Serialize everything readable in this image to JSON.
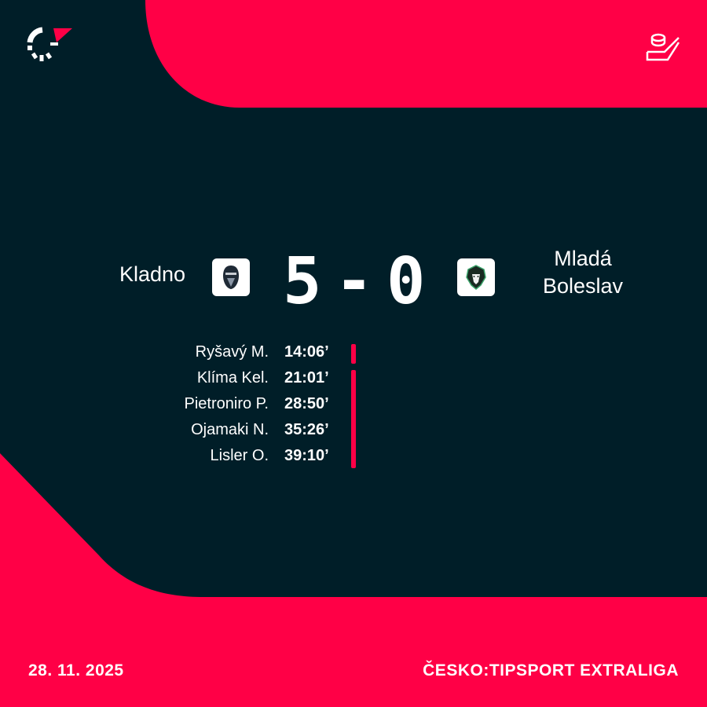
{
  "colors": {
    "background": "#001e28",
    "accent": "#ff0046",
    "text": "#ffffff"
  },
  "header": {
    "brand_icon": "flashscore-logo-icon",
    "sport_icon": "hockey-puck-stick-icon"
  },
  "match": {
    "home_team": {
      "name": "Kladno",
      "logo": "kladno-knight-logo"
    },
    "away_team": {
      "name_line1": "Mladá",
      "name_line2": "Boleslav",
      "logo": "mlada-boleslav-lion-logo"
    },
    "home_score": "5",
    "separator": "-",
    "away_score": "0"
  },
  "goals": [
    {
      "player": "Ryšavý M.",
      "time": "14:06’"
    },
    {
      "player": "Klíma Kel.",
      "time": "21:01’"
    },
    {
      "player": "Pietroniro P.",
      "time": "28:50’"
    },
    {
      "player": "Ojamaki N.",
      "time": "35:26’"
    },
    {
      "player": "Lisler O.",
      "time": "39:10’"
    }
  ],
  "footer": {
    "date": "28. 11. 2025",
    "competition": "ČESKO:TIPSPORT EXTRALIGA"
  }
}
